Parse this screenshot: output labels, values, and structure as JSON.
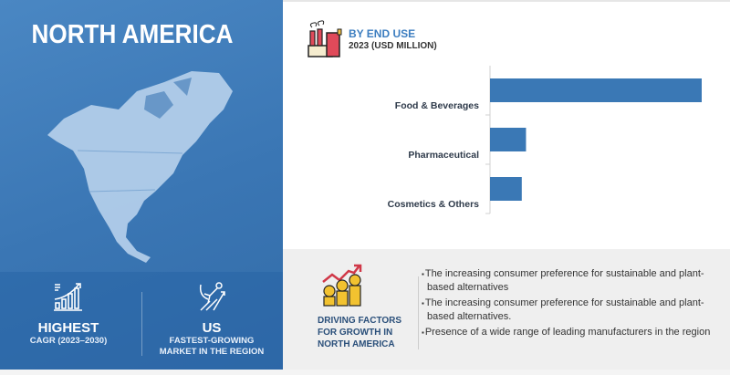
{
  "region_panel": {
    "title": "NORTH AMERICA",
    "stats": [
      {
        "icon": "growth-bar-chart-icon",
        "headline": "HIGHEST",
        "caption": "CAGR (2023–2030)"
      },
      {
        "icon": "flying-superhero-icon",
        "headline": "US",
        "caption_line1": "FASTEST-GROWING",
        "caption_line2": "MARKET IN THE REGION"
      }
    ]
  },
  "chart_data": {
    "type": "bar",
    "orientation": "horizontal",
    "title": "BY END USE",
    "subtitle": "2023 (USD MILLION)",
    "icon": "factory-icon",
    "categories": [
      "Food & Beverages",
      "Pharmaceutical",
      "Cosmetics & Others"
    ],
    "values": [
      100,
      17,
      15
    ],
    "value_note_unlabeled": true,
    "bar_color": "#3a78b5",
    "grid": false
  },
  "drivers": {
    "icon": "money-growth-icon",
    "title_lines": [
      "DRIVING FACTORS",
      "FOR GROWTH IN",
      "NORTH AMERICA"
    ],
    "items": [
      "The increasing consumer preference for sustainable and plant-based alternatives",
      "The increasing consumer preference for sustainable and plant-based alternatives.",
      "Presence of a wide range of leading manufacturers in the region"
    ]
  },
  "colors": {
    "panel_blue": "#3a76b4",
    "title_blue": "#3d7ec0",
    "dark_blue_text": "#2a4f7a"
  }
}
